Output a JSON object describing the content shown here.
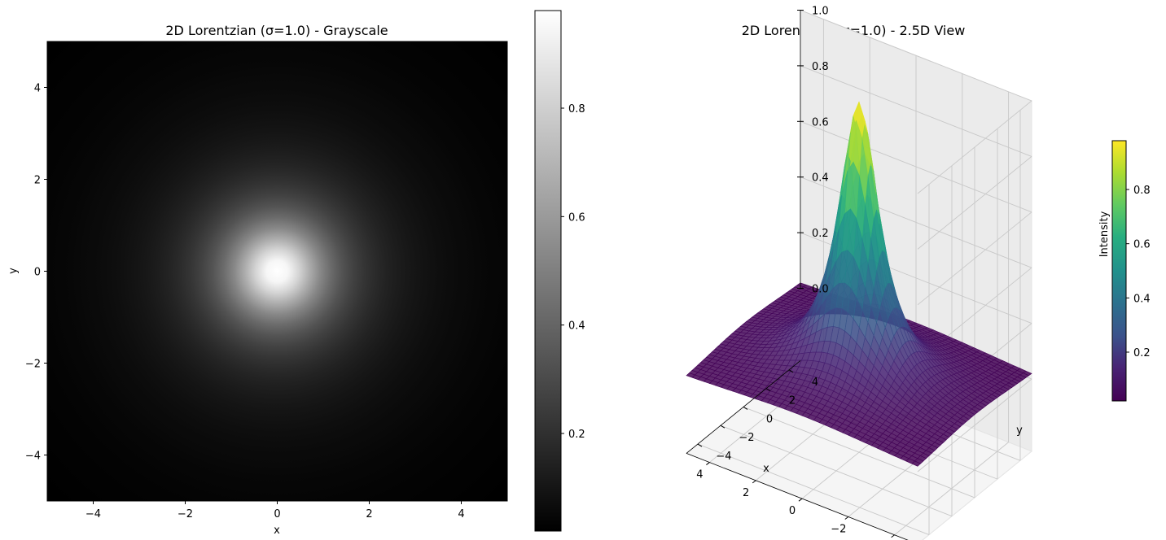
{
  "chart_data": [
    {
      "type": "heatmap",
      "title": "2D Lorentzian (σ=1.0) - Grayscale",
      "xlabel": "x",
      "ylabel": "y",
      "xlim": [
        -5,
        5
      ],
      "ylim": [
        -5,
        5
      ],
      "xticks": [
        "−4",
        "−2",
        "0",
        "2",
        "4"
      ],
      "yticks": [
        "−4",
        "−2",
        "0",
        "2",
        "4"
      ],
      "xtick_values": [
        -4,
        -2,
        0,
        2,
        4
      ],
      "ytick_values": [
        -4,
        -2,
        0,
        2,
        4
      ],
      "function": {
        "name": "2D Lorentzian",
        "sigma": 1.0,
        "center": [
          0,
          0
        ],
        "peak": 1.0
      },
      "colormap": "gray",
      "colorbar": {
        "range": [
          0.02,
          0.98
        ],
        "ticks": [
          "0.2",
          "0.4",
          "0.6",
          "0.8"
        ],
        "tick_values": [
          0.2,
          0.4,
          0.6,
          0.8
        ]
      },
      "grid": false
    },
    {
      "type": "surface",
      "title": "2D Lorentzian (σ=1.0) - 2.5D View",
      "xlabel": "x",
      "ylabel": "y",
      "zlabel": "",
      "xlim": [
        -5,
        5
      ],
      "ylim": [
        -5,
        5
      ],
      "zlim": [
        0,
        1
      ],
      "xticks": [
        "−4",
        "−2",
        "0",
        "2",
        "4"
      ],
      "yticks": [
        "−4",
        "−2",
        "0",
        "2",
        "4"
      ],
      "zticks": [
        "0.0",
        "0.2",
        "0.4",
        "0.6",
        "0.8",
        "1.0"
      ],
      "xtick_values": [
        -4,
        -2,
        0,
        2,
        4
      ],
      "ytick_values": [
        -4,
        -2,
        0,
        2,
        4
      ],
      "ztick_values": [
        0.0,
        0.2,
        0.4,
        0.6,
        0.8,
        1.0
      ],
      "function": {
        "name": "2D Lorentzian",
        "sigma": 1.0,
        "center": [
          0,
          0
        ],
        "peak": 1.0
      },
      "colormap": "viridis",
      "colorbar": {
        "label": "Intensity",
        "range": [
          0.02,
          0.98
        ],
        "ticks": [
          "0.2",
          "0.4",
          "0.6",
          "0.8"
        ],
        "tick_values": [
          0.2,
          0.4,
          0.6,
          0.8
        ]
      },
      "grid": true
    }
  ]
}
